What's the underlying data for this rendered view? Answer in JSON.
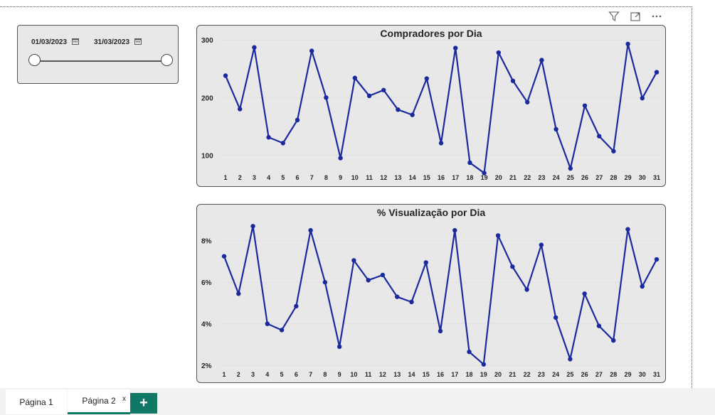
{
  "visual_header": {
    "icons": [
      "filter-icon",
      "focus-mode-icon",
      "more-options-icon"
    ]
  },
  "slicer": {
    "start_date": "01/03/2023",
    "end_date": "31/03/2023",
    "range_start_fraction": 0,
    "range_end_fraction": 1
  },
  "colors": {
    "series": "#1a2a9c",
    "chart_bg": "#e8e8e8",
    "accent": "#117865"
  },
  "chart_data": [
    {
      "type": "line",
      "title": "Compradores por Dia",
      "xlabel": "",
      "ylabel": "",
      "x": [
        "1",
        "2",
        "3",
        "4",
        "5",
        "6",
        "7",
        "8",
        "9",
        "10",
        "11",
        "12",
        "13",
        "14",
        "15",
        "16",
        "17",
        "18",
        "19",
        "20",
        "21",
        "22",
        "23",
        "24",
        "25",
        "26",
        "27",
        "28",
        "29",
        "30",
        "31"
      ],
      "yticks": [
        "100",
        "200",
        "300"
      ],
      "ylim": [
        45,
        320
      ],
      "grid": true,
      "series": [
        {
          "values": [
            238,
            180,
            287,
            131,
            121,
            161,
            281,
            200,
            95,
            234,
            203,
            213,
            179,
            170,
            233,
            121,
            286,
            87,
            69,
            278,
            229,
            192,
            265,
            145,
            77,
            186,
            133,
            107,
            293,
            199,
            244
          ]
        }
      ]
    },
    {
      "type": "line",
      "title": "% Visualização por Dia",
      "xlabel": "",
      "ylabel": "",
      "x": [
        "1",
        "2",
        "3",
        "4",
        "5",
        "6",
        "7",
        "8",
        "9",
        "10",
        "11",
        "12",
        "13",
        "14",
        "15",
        "16",
        "17",
        "18",
        "19",
        "20",
        "21",
        "22",
        "23",
        "24",
        "25",
        "26",
        "27",
        "28",
        "29",
        "30",
        "31"
      ],
      "yticks": [
        "2%",
        "4%",
        "6%",
        "8%"
      ],
      "ytick_values": [
        2,
        4,
        6,
        8
      ],
      "ylim": [
        1.8,
        9.0
      ],
      "grid": true,
      "series": [
        {
          "values": [
            7.25,
            5.45,
            8.7,
            4.0,
            3.7,
            4.85,
            8.5,
            6.0,
            2.9,
            7.05,
            6.1,
            6.35,
            5.3,
            5.05,
            6.95,
            3.65,
            8.5,
            2.65,
            2.05,
            8.25,
            6.75,
            5.65,
            7.8,
            4.3,
            2.3,
            5.45,
            3.9,
            3.2,
            8.55,
            5.8,
            7.1
          ]
        }
      ]
    }
  ],
  "tabs": {
    "items": [
      {
        "label": "Página 1",
        "active": false
      },
      {
        "label": "Página 2",
        "active": true
      }
    ],
    "close_glyph": "x",
    "add_label": "+"
  }
}
